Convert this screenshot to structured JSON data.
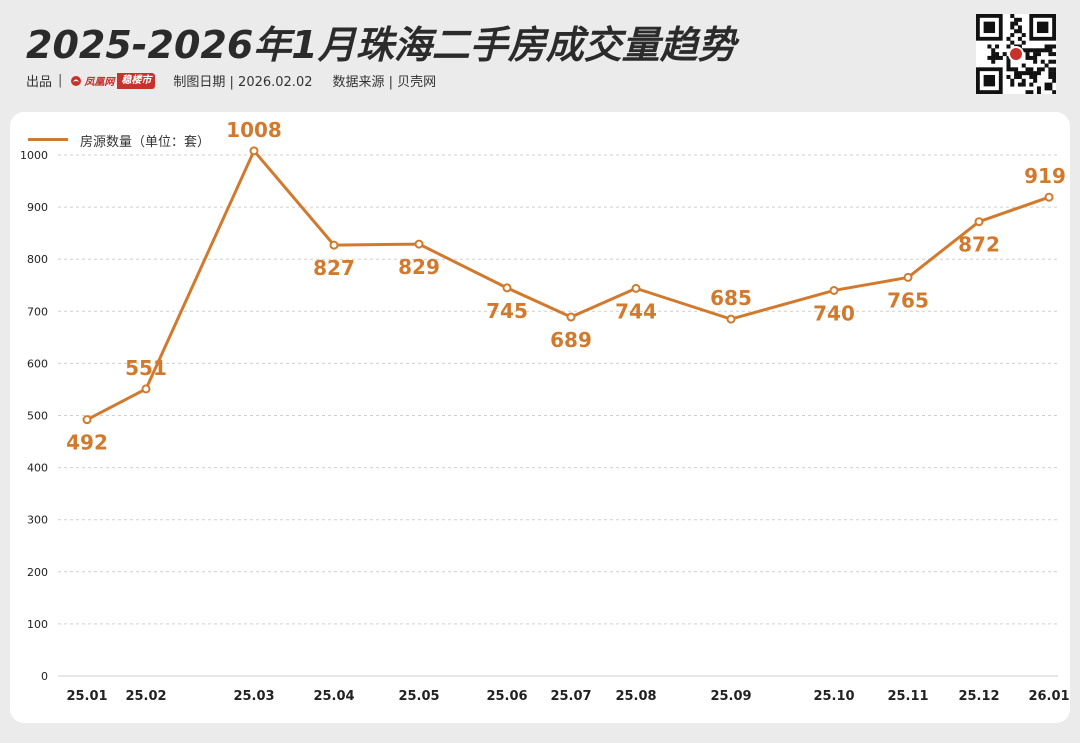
{
  "header": {
    "title": "2025-2026年1月珠海二手房成交量趋势",
    "producer_label": "出品",
    "logo_text": "凤凰网",
    "logo_suffix": "稳楼市",
    "date_label": "制图日期 | 2026.02.02",
    "source_label": "数据来源 | 贝壳网"
  },
  "colors": {
    "line": "#d17a2e",
    "data_label": "#d17a2e",
    "axis_text": "#222222",
    "grid": "#cfcfcf",
    "background": "#ebebeb",
    "card": "#ffffff"
  },
  "chart_data": {
    "type": "line",
    "title": "2025-2026年1月珠海二手房成交量趋势",
    "xlabel": "",
    "ylabel": "",
    "categories": [
      "25.01",
      "25.02",
      "25.03",
      "25.04",
      "25.05",
      "25.06",
      "25.07",
      "25.08",
      "25.09",
      "25.10",
      "25.11",
      "25.12",
      "26.01"
    ],
    "series": [
      {
        "name": "房源数量（单位：套）",
        "values": [
          492,
          551,
          1008,
          827,
          829,
          745,
          689,
          744,
          685,
          740,
          765,
          872,
          919
        ]
      }
    ],
    "ylim": [
      0,
      1000
    ],
    "yticks": [
      0,
      100,
      200,
      300,
      400,
      500,
      600,
      700,
      800,
      900,
      1000
    ],
    "grid": "horizontal dashed",
    "legend_position": "top-left"
  }
}
